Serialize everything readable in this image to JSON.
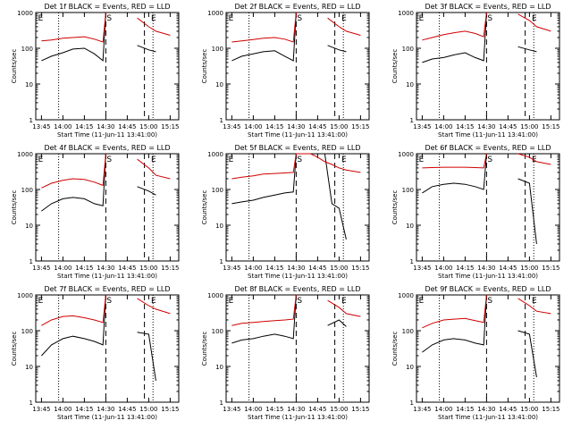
{
  "colors": {
    "events": "#000000",
    "lld": "#d00000",
    "frame": "#000000"
  },
  "panel_common": {
    "ylabel": "Counts/sec",
    "xlabel": "Start Time (11-Jun-11 13:41:00)",
    "xticks": [
      "13:45",
      "14:00",
      "14:15",
      "14:30",
      "14:45",
      "15:00",
      "15:15"
    ],
    "yticks": [
      "1",
      "10",
      "100",
      "1000"
    ],
    "markers": [
      "E",
      "S",
      "E"
    ]
  },
  "chart_data": [
    {
      "type": "line",
      "title": "Det 1f BLACK = Events, RED = LLD",
      "xlabel": "Start Time (11-Jun-11 13:41:00)",
      "ylabel": "Counts/sec",
      "ylim": [
        1,
        1000
      ],
      "yscale": "log",
      "grid": false,
      "x": [
        "13:45",
        "13:52",
        "14:00",
        "14:07",
        "14:15",
        "14:22",
        "14:28",
        "14:30",
        "14:45",
        "14:50",
        "14:52",
        "15:00",
        "15:05",
        "15:15"
      ],
      "series": [
        {
          "name": "BLACK = Events",
          "color": "#000000",
          "values": [
            45,
            60,
            75,
            95,
            100,
            70,
            45,
            1000,
            null,
            null,
            120,
            90,
            80,
            null
          ]
        },
        {
          "name": "RED = LLD",
          "color": "#d00000",
          "values": [
            160,
            170,
            190,
            200,
            210,
            180,
            150,
            1000,
            null,
            null,
            700,
            400,
            300,
            230
          ]
        }
      ],
      "dashed_lines_x": [
        "14:30",
        "14:57"
      ],
      "dotted_lines_x": [
        "13:57",
        "15:03"
      ]
    },
    {
      "type": "line",
      "title": "Det 2f BLACK = Events, RED = LLD",
      "xlabel": "Start Time (11-Jun-11 13:41:00)",
      "ylabel": "Counts/sec",
      "ylim": [
        1,
        1000
      ],
      "yscale": "log",
      "grid": false,
      "x": [
        "13:45",
        "13:52",
        "14:00",
        "14:07",
        "14:15",
        "14:22",
        "14:28",
        "14:30",
        "14:45",
        "14:50",
        "14:52",
        "15:00",
        "15:05",
        "15:15"
      ],
      "series": [
        {
          "name": "BLACK = Events",
          "color": "#000000",
          "values": [
            45,
            60,
            70,
            80,
            85,
            60,
            45,
            1000,
            null,
            null,
            120,
            90,
            80,
            null
          ]
        },
        {
          "name": "RED = LLD",
          "color": "#d00000",
          "values": [
            150,
            160,
            175,
            190,
            200,
            180,
            150,
            1000,
            null,
            null,
            700,
            400,
            300,
            230
          ]
        }
      ],
      "dashed_lines_x": [
        "14:30",
        "14:57"
      ],
      "dotted_lines_x": [
        "13:57",
        "15:03"
      ]
    },
    {
      "type": "line",
      "title": "Det 3f BLACK = Events, RED = LLD",
      "xlabel": "Start Time (11-Jun-11 13:41:00)",
      "ylabel": "Counts/sec",
      "ylim": [
        1,
        1000
      ],
      "yscale": "log",
      "grid": false,
      "x": [
        "13:45",
        "13:52",
        "14:00",
        "14:07",
        "14:15",
        "14:22",
        "14:28",
        "14:30",
        "14:45",
        "14:50",
        "14:52",
        "15:00",
        "15:05",
        "15:15"
      ],
      "series": [
        {
          "name": "BLACK = Events",
          "color": "#000000",
          "values": [
            40,
            50,
            55,
            65,
            75,
            55,
            45,
            1000,
            null,
            null,
            110,
            90,
            80,
            null
          ]
        },
        {
          "name": "RED = LLD",
          "color": "#d00000",
          "values": [
            170,
            200,
            240,
            270,
            300,
            260,
            210,
            1000,
            null,
            null,
            900,
            600,
            400,
            300
          ]
        }
      ],
      "dashed_lines_x": [
        "14:30",
        "14:57"
      ],
      "dotted_lines_x": [
        "13:57",
        "15:03"
      ]
    },
    {
      "type": "line",
      "title": "Det 4f BLACK = Events, RED = LLD",
      "xlabel": "Start Time (11-Jun-11 13:41:00)",
      "ylabel": "Counts/sec",
      "ylim": [
        1,
        1000
      ],
      "yscale": "log",
      "grid": false,
      "x": [
        "13:45",
        "13:52",
        "14:00",
        "14:07",
        "14:15",
        "14:22",
        "14:28",
        "14:30",
        "14:45",
        "14:50",
        "14:52",
        "15:00",
        "15:05",
        "15:15"
      ],
      "series": [
        {
          "name": "BLACK = Events",
          "color": "#000000",
          "values": [
            25,
            40,
            55,
            60,
            55,
            40,
            35,
            1000,
            null,
            null,
            120,
            90,
            70,
            null
          ]
        },
        {
          "name": "RED = LLD",
          "color": "#d00000",
          "values": [
            110,
            150,
            180,
            200,
            190,
            160,
            130,
            1000,
            null,
            null,
            700,
            400,
            250,
            200
          ]
        }
      ],
      "dashed_lines_x": [
        "14:30",
        "14:57"
      ],
      "dotted_lines_x": [
        "13:57",
        "15:03"
      ]
    },
    {
      "type": "line",
      "title": "Det 5f BLACK = Events, RED = LLD",
      "xlabel": "Start Time (11-Jun-11 13:41:00)",
      "ylabel": "Counts/sec",
      "ylim": [
        1,
        1000
      ],
      "yscale": "log",
      "grid": false,
      "x": [
        "13:45",
        "13:52",
        "14:00",
        "14:07",
        "14:15",
        "14:22",
        "14:28",
        "14:30",
        "14:40",
        "14:45",
        "14:50",
        "14:55",
        "15:00",
        "15:05",
        "15:15"
      ],
      "series": [
        {
          "name": "BLACK = Events",
          "color": "#000000",
          "values": [
            40,
            45,
            50,
            60,
            70,
            80,
            85,
            1000,
            1000,
            1000,
            1000,
            40,
            30,
            4,
            null
          ]
        },
        {
          "name": "RED = LLD",
          "color": "#d00000",
          "values": [
            200,
            220,
            240,
            270,
            280,
            290,
            300,
            1000,
            1000,
            800,
            600,
            500,
            400,
            350,
            300
          ]
        }
      ],
      "dashed_lines_x": [
        "14:30",
        "14:57"
      ],
      "dotted_lines_x": [
        "13:57",
        "15:03"
      ]
    },
    {
      "type": "line",
      "title": "Det 6f BLACK = Events, RED = LLD",
      "xlabel": "Start Time (11-Jun-11 13:41:00)",
      "ylabel": "Counts/sec",
      "ylim": [
        1,
        1000
      ],
      "yscale": "log",
      "grid": false,
      "x": [
        "13:45",
        "13:52",
        "14:00",
        "14:07",
        "14:15",
        "14:22",
        "14:28",
        "14:30",
        "14:45",
        "14:50",
        "14:52",
        "15:00",
        "15:05",
        "15:15"
      ],
      "series": [
        {
          "name": "BLACK = Events",
          "color": "#000000",
          "values": [
            80,
            120,
            140,
            150,
            140,
            120,
            100,
            1000,
            null,
            null,
            200,
            150,
            3,
            null
          ]
        },
        {
          "name": "RED = LLD",
          "color": "#d00000",
          "values": [
            400,
            410,
            420,
            420,
            420,
            410,
            400,
            1000,
            null,
            null,
            1000,
            800,
            600,
            500
          ]
        }
      ],
      "dashed_lines_x": [
        "14:30",
        "14:57"
      ],
      "dotted_lines_x": [
        "13:57",
        "15:03"
      ]
    },
    {
      "type": "line",
      "title": "Det 7f BLACK = Events, RED = LLD",
      "xlabel": "Start Time (11-Jun-11 13:41:00)",
      "ylabel": "Counts/sec",
      "ylim": [
        1,
        1000
      ],
      "yscale": "log",
      "grid": false,
      "x": [
        "13:45",
        "13:52",
        "14:00",
        "14:07",
        "14:15",
        "14:22",
        "14:28",
        "14:30",
        "14:45",
        "14:50",
        "14:52",
        "15:00",
        "15:05",
        "15:15"
      ],
      "series": [
        {
          "name": "BLACK = Events",
          "color": "#000000",
          "values": [
            20,
            40,
            60,
            70,
            60,
            50,
            40,
            1000,
            null,
            null,
            90,
            80,
            4,
            null
          ]
        },
        {
          "name": "RED = LLD",
          "color": "#d00000",
          "values": [
            140,
            200,
            250,
            260,
            230,
            200,
            170,
            1000,
            null,
            null,
            800,
            500,
            400,
            300
          ]
        }
      ],
      "dashed_lines_x": [
        "14:30",
        "14:57"
      ],
      "dotted_lines_x": [
        "13:57",
        "15:03"
      ]
    },
    {
      "type": "line",
      "title": "Det 8f BLACK = Events, RED = LLD",
      "xlabel": "Start Time (11-Jun-11 13:41:00)",
      "ylabel": "Counts/sec",
      "ylim": [
        1,
        1000
      ],
      "yscale": "log",
      "grid": false,
      "x": [
        "13:45",
        "13:52",
        "14:00",
        "14:07",
        "14:15",
        "14:22",
        "14:28",
        "14:30",
        "14:45",
        "14:50",
        "14:52",
        "15:00",
        "15:05",
        "15:15"
      ],
      "series": [
        {
          "name": "BLACK = Events",
          "color": "#000000",
          "values": [
            45,
            55,
            60,
            70,
            80,
            70,
            60,
            1000,
            null,
            null,
            140,
            200,
            130,
            null
          ]
        },
        {
          "name": "RED = LLD",
          "color": "#d00000",
          "values": [
            140,
            160,
            170,
            180,
            190,
            200,
            210,
            1000,
            null,
            null,
            700,
            450,
            300,
            250
          ]
        }
      ],
      "dashed_lines_x": [
        "14:30",
        "14:57"
      ],
      "dotted_lines_x": [
        "13:57",
        "15:03"
      ]
    },
    {
      "type": "line",
      "title": "Det 9f BLACK = Events, RED = LLD",
      "xlabel": "Start Time (11-Jun-11 13:41:00)",
      "ylabel": "Counts/sec",
      "ylim": [
        1,
        1000
      ],
      "yscale": "log",
      "grid": false,
      "x": [
        "13:45",
        "13:52",
        "14:00",
        "14:07",
        "14:15",
        "14:22",
        "14:28",
        "14:30",
        "14:45",
        "14:50",
        "14:52",
        "15:00",
        "15:05",
        "15:15"
      ],
      "series": [
        {
          "name": "BLACK = Events",
          "color": "#000000",
          "values": [
            25,
            40,
            55,
            60,
            55,
            45,
            40,
            1000,
            null,
            null,
            100,
            80,
            5,
            null
          ]
        },
        {
          "name": "RED = LLD",
          "color": "#d00000",
          "values": [
            120,
            160,
            200,
            210,
            220,
            190,
            170,
            1000,
            null,
            null,
            800,
            500,
            350,
            300
          ]
        }
      ],
      "dashed_lines_x": [
        "14:30",
        "14:57"
      ],
      "dotted_lines_x": [
        "13:57",
        "15:03"
      ]
    }
  ]
}
